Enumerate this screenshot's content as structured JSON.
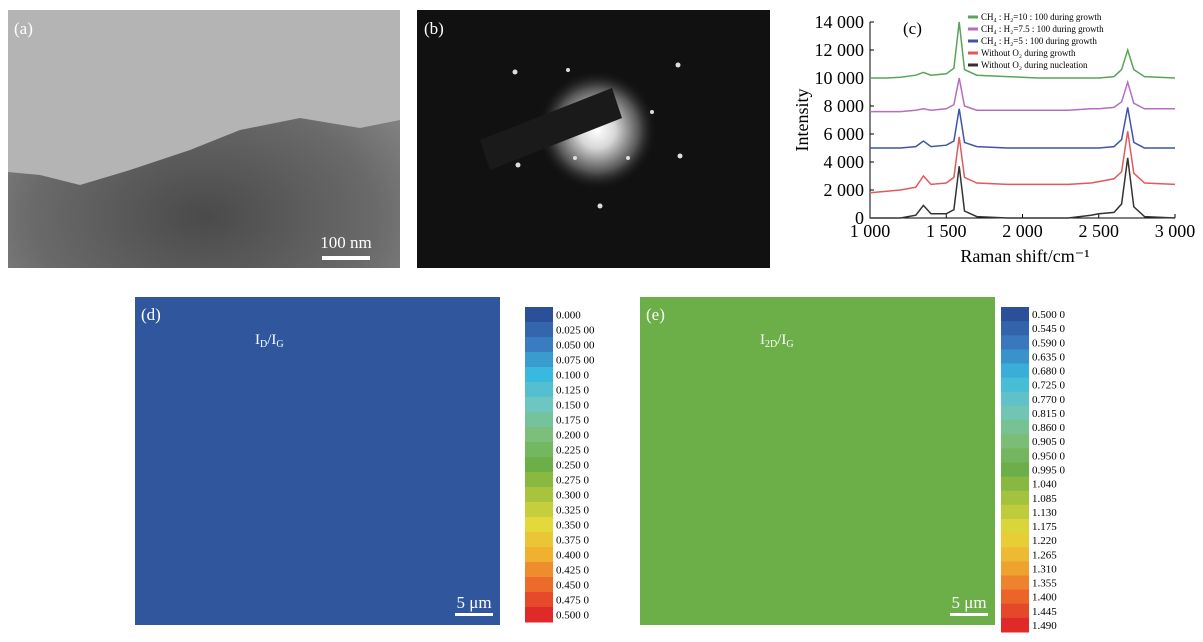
{
  "panels": {
    "a": {
      "label": "(a)",
      "scale_bar": "100 nm"
    },
    "b": {
      "label": "(b)"
    },
    "d": {
      "label": "(d)",
      "title": [
        "I",
        "D",
        "/I",
        "G"
      ],
      "scale_bar": "5 μm",
      "map_color": "#30579e",
      "colorbar": [
        "0.000",
        "0.025 00",
        "0.050 00",
        "0.075 00",
        "0.100 0",
        "0.125 0",
        "0.150 0",
        "0.175 0",
        "0.200 0",
        "0.225 0",
        "0.250 0",
        "0.275 0",
        "0.300 0",
        "0.325 0",
        "0.350 0",
        "0.375 0",
        "0.400 0",
        "0.425 0",
        "0.450 0",
        "0.475 0",
        "0.500 0"
      ]
    },
    "e": {
      "label": "(e)",
      "title": [
        "I",
        "2D",
        "/I",
        "G"
      ],
      "scale_bar": "5 μm",
      "map_color": "#6cae47",
      "colorbar": [
        "0.500 0",
        "0.545 0",
        "0.590 0",
        "0.635 0",
        "0.680 0",
        "0.725 0",
        "0.770 0",
        "0.815 0",
        "0.860 0",
        "0.905 0",
        "0.950 0",
        "0.995 0",
        "1.040",
        "1.085",
        "1.130",
        "1.175",
        "1.220",
        "1.265",
        "1.310",
        "1.355",
        "1.400",
        "1.445",
        "1.490"
      ]
    },
    "colormap": [
      "#2c4f9a",
      "#3a7cc0",
      "#3ab9de",
      "#6ec6c0",
      "#7cbf7a",
      "#6cae47",
      "#a8c43c",
      "#e4d93a",
      "#f0b030",
      "#ec6a2a",
      "#e02a2a"
    ]
  },
  "chart_data": {
    "type": "line",
    "label": "(c)",
    "y_label": "Intensity",
    "x_label": "Raman shift/cm⁻¹",
    "x": [
      1000,
      1100,
      1200,
      1300,
      1350,
      1400,
      1500,
      1550,
      1585,
      1620,
      1700,
      1900,
      2100,
      2300,
      2450,
      2500,
      2600,
      2650,
      2690,
      2730,
      2800,
      3000
    ],
    "series": [
      {
        "name": "CH₄ : H₂=5 : 100 during growth",
        "color": "#3f55a8",
        "values": [
          5000,
          5000,
          5000,
          5100,
          5500,
          5100,
          5200,
          5500,
          7800,
          5400,
          5100,
          5000,
          5000,
          5000,
          5000,
          5000,
          5100,
          5600,
          7900,
          5400,
          5000,
          5000
        ]
      },
      {
        "name": "CH₄ : H₂=7.5 : 100 during growth",
        "color": "#b46ec0",
        "values": [
          7600,
          7600,
          7600,
          7700,
          7800,
          7700,
          7800,
          8100,
          10000,
          8000,
          7700,
          7700,
          7700,
          7700,
          7800,
          7800,
          7900,
          8300,
          9700,
          8200,
          7800,
          7800
        ]
      },
      {
        "name": "CH₄ : H₂=10 : 100 during growth",
        "color": "#5aa35a",
        "values": [
          10000,
          10000,
          10050,
          10200,
          10400,
          10200,
          10300,
          10700,
          14000,
          10600,
          10200,
          10100,
          10000,
          10000,
          10000,
          10000,
          10100,
          10600,
          12000,
          10600,
          10100,
          10000
        ]
      },
      {
        "name": "Without O₂ during nucleation",
        "color": "#333333",
        "values": [
          0,
          0,
          0,
          200,
          900,
          300,
          300,
          600,
          3700,
          500,
          100,
          0,
          0,
          0,
          200,
          300,
          400,
          1000,
          4300,
          800,
          100,
          0
        ]
      },
      {
        "name": "Without O₂ during growth",
        "color": "#e05a5a",
        "values": [
          1800,
          1900,
          2000,
          2200,
          3000,
          2400,
          2500,
          2900,
          5800,
          2900,
          2500,
          2400,
          2400,
          2400,
          2500,
          2600,
          2800,
          3300,
          6200,
          3200,
          2500,
          2400
        ]
      }
    ],
    "xlim": [
      1000,
      3000
    ],
    "xticks": [
      {
        "value": 1000,
        "label": "1 000"
      },
      {
        "value": 1500,
        "label": "1 500"
      },
      {
        "value": 2000,
        "label": "2 000"
      },
      {
        "value": 2500,
        "label": "2 500"
      },
      {
        "value": 3000,
        "label": "3 000"
      }
    ],
    "ylim": [
      0,
      14000
    ],
    "yticks": [
      0,
      {
        "value": 2000,
        "label": "2 000"
      },
      {
        "value": 4000,
        "label": "4 000"
      },
      {
        "value": 6000,
        "label": "6 000"
      },
      {
        "value": 8000,
        "label": "8 000"
      },
      {
        "value": 10000,
        "label": "10 000"
      },
      {
        "value": 12000,
        "label": "12 000"
      },
      {
        "value": 14000,
        "label": "14 000"
      }
    ]
  }
}
